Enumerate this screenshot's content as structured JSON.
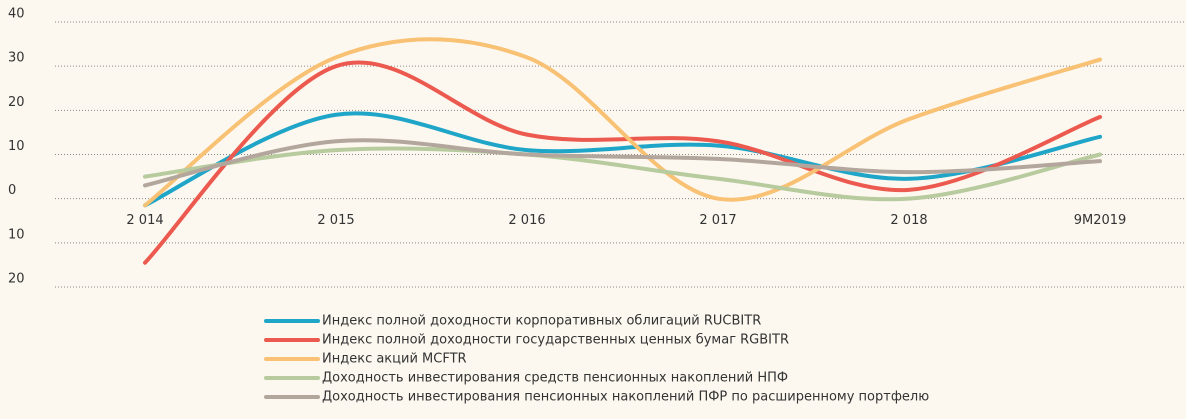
{
  "chart_data": {
    "type": "line",
    "categories": [
      "2 014",
      "2 015",
      "2 016",
      "2 017",
      "2 018",
      "9M2019"
    ],
    "series": [
      {
        "name": "Индекс полной доходности  корпоративных облигаций RUCBITR",
        "color": "#1fa5c8",
        "values": [
          -1.5,
          19,
          11,
          12,
          4.5,
          14
        ]
      },
      {
        "name": "Индекс полной доходности государственных ценных бумаг RGBITR",
        "color": "#ec5a4f",
        "values": [
          -14.5,
          30,
          14.5,
          13,
          2,
          18.5
        ]
      },
      {
        "name": "Индекс акций MCFTR",
        "color": "#f8c173",
        "values": [
          -1.5,
          32,
          32,
          0,
          18,
          31.5
        ]
      },
      {
        "name": "Доходность инвестирования средств пенсионных накоплений НПФ",
        "color": "#b7cb9e",
        "values": [
          5,
          11,
          10,
          4.5,
          0,
          10
        ]
      },
      {
        "name": "Доходность инвестирования пенсионных накоплений ПФР по расширенному портфелю",
        "color": "#b3a79d",
        "values": [
          3,
          13,
          10,
          9,
          6,
          8.5
        ]
      }
    ],
    "ylim": [
      -20,
      40
    ],
    "yticks": [
      40,
      30,
      20,
      10,
      0,
      {
        "value": -10,
        "label": "10"
      },
      {
        "value": -20,
        "label": "20"
      }
    ],
    "grid": true
  }
}
